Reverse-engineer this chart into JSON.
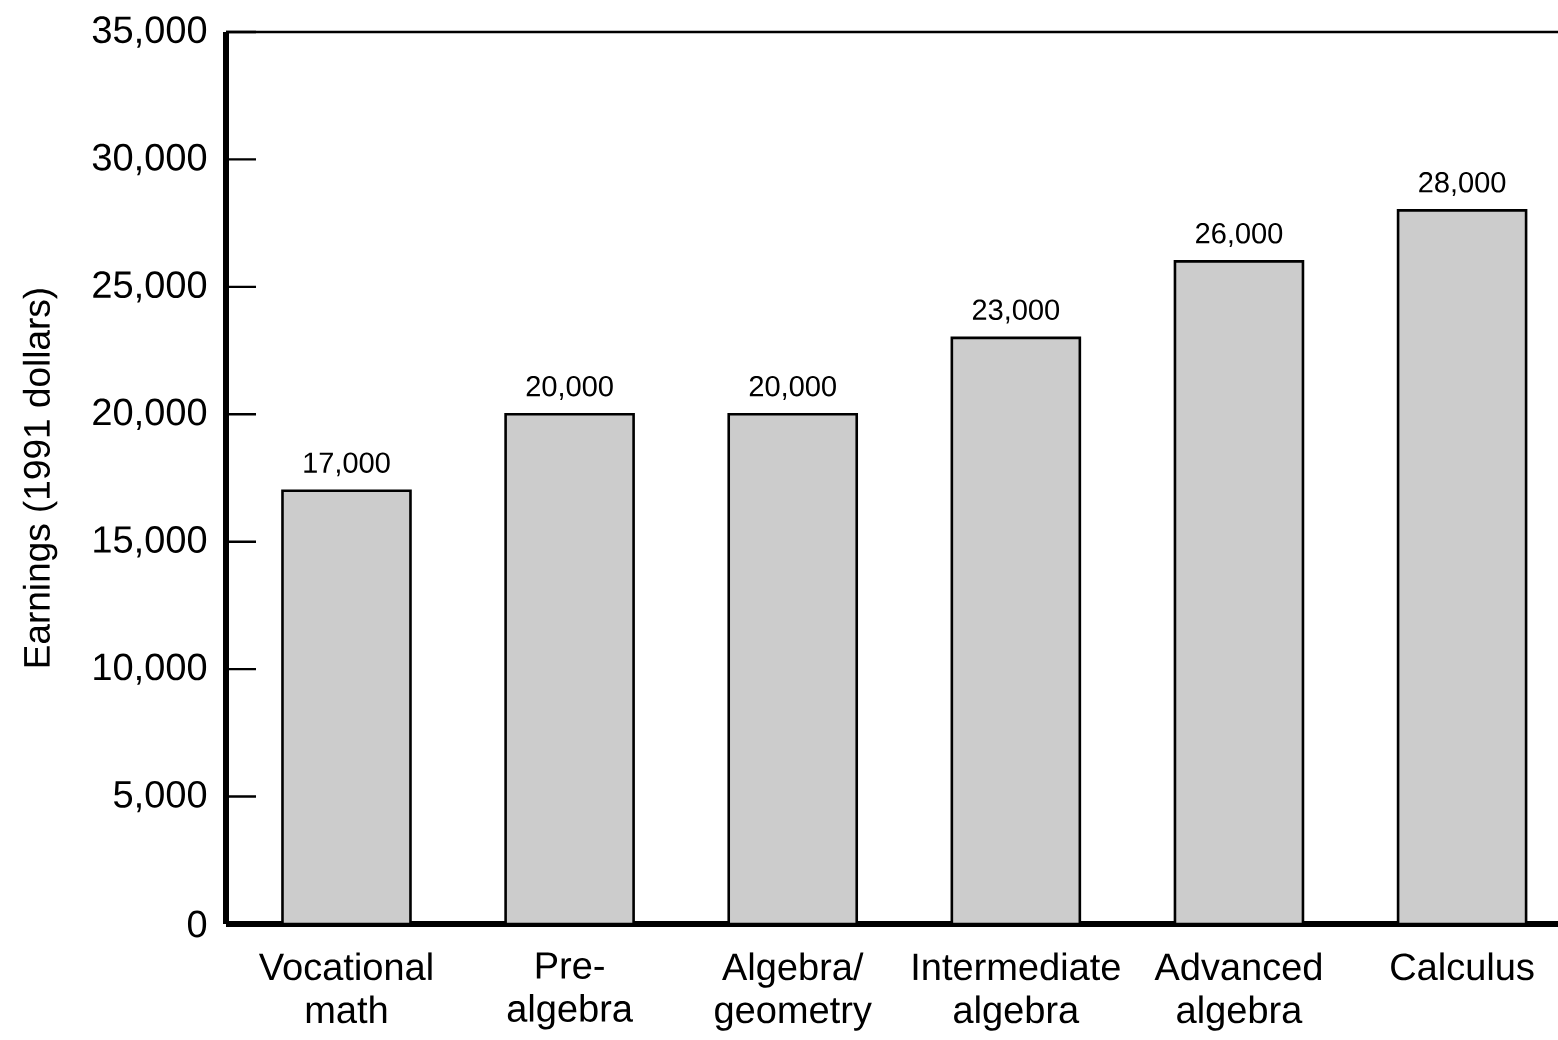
{
  "chart_data": {
    "type": "bar",
    "ylabel": "Earnings (1991 dollars)",
    "categories": [
      "Vocational math",
      "Pre-algebra",
      "Algebra/ geometry",
      "Intermediate algebra",
      "Advanced algebra",
      "Calculus"
    ],
    "values": [
      17000,
      20000,
      20000,
      23000,
      26000,
      28000
    ],
    "value_labels": [
      "17,000",
      "20,000",
      "20,000",
      "23,000",
      "26,000",
      "28,000"
    ],
    "color": "#cccccc",
    "ylim": [
      0,
      35000
    ],
    "yticks": [
      0,
      {
        "value": 5000,
        "label": "5,000"
      },
      {
        "value": 10000,
        "label": "10,000"
      },
      {
        "value": 15000,
        "label": "15,000"
      },
      {
        "value": 20000,
        "label": "20,000"
      },
      {
        "value": 25000,
        "label": "25,000"
      },
      {
        "value": 30000,
        "label": "30,000"
      },
      {
        "value": 35000,
        "label": "35,000"
      }
    ]
  }
}
